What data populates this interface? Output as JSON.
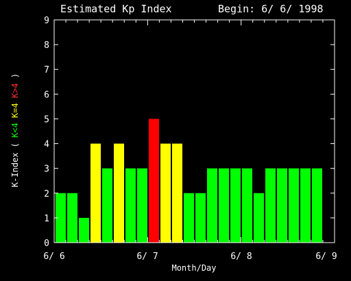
{
  "chart_data": {
    "type": "bar",
    "title_left": "Estimated Kp Index",
    "title_right": "Begin: 6/ 6/ 1998",
    "ylabel": {
      "prefix": "K-Index ( ",
      "green": "K<4",
      "yellow": "K=4",
      "red": "K>4",
      "suffix": " )"
    },
    "xlabel": "Month/Day",
    "ylim": [
      0,
      9
    ],
    "yticks": [
      "0",
      "1",
      "2",
      "3",
      "4",
      "5",
      "6",
      "7",
      "8",
      "9"
    ],
    "xticks": [
      "6/ 6",
      "6/ 7",
      "6/ 8",
      "6/ 9"
    ],
    "values": [
      2,
      2,
      1,
      4,
      3,
      4,
      3,
      3,
      5,
      4,
      4,
      2,
      2,
      3,
      3,
      3,
      3,
      2,
      3,
      3,
      3,
      3,
      3
    ],
    "grid": false,
    "colors": {
      "low": "#00ff00",
      "equal": "#ffff00",
      "high": "#ff0000",
      "axes": "#ffffff",
      "background": "#000000"
    }
  }
}
